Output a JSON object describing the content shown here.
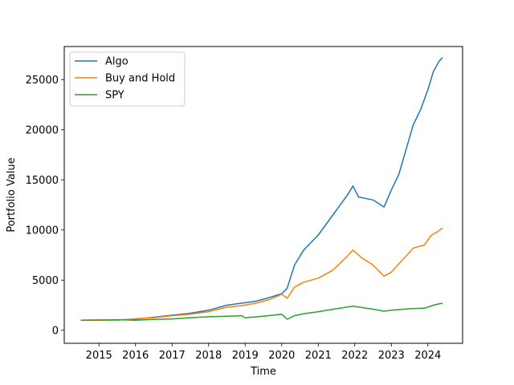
{
  "chart_data": {
    "type": "line",
    "title": "",
    "xlabel": "Time",
    "ylabel": "Portfolio Value",
    "xlim": [
      2014.05,
      2024.95
    ],
    "ylim": [
      -1300,
      28300
    ],
    "x_ticks": [
      2015,
      2016,
      2017,
      2018,
      2019,
      2020,
      2021,
      2022,
      2023,
      2024
    ],
    "x_tick_labels": [
      "2015",
      "2016",
      "2017",
      "2018",
      "2019",
      "2020",
      "2021",
      "2022",
      "2023",
      "2024"
    ],
    "y_ticks": [
      0,
      5000,
      10000,
      15000,
      20000,
      25000
    ],
    "y_tick_labels": [
      "0",
      "5000",
      "10000",
      "15000",
      "20000",
      "25000"
    ],
    "grid": false,
    "legend_position": "upper-left",
    "series": [
      {
        "name": "Algo",
        "color": "#1f77b4",
        "points": [
          [
            2014.5,
            1000
          ],
          [
            2015.0,
            1020
          ],
          [
            2015.5,
            1030
          ],
          [
            2016.0,
            1100
          ],
          [
            2016.5,
            1300
          ],
          [
            2017.0,
            1500
          ],
          [
            2017.5,
            1700
          ],
          [
            2018.0,
            2000
          ],
          [
            2018.5,
            2500
          ],
          [
            2018.9,
            2700
          ],
          [
            2019.3,
            2900
          ],
          [
            2019.7,
            3300
          ],
          [
            2020.0,
            3650
          ],
          [
            2020.15,
            4200
          ],
          [
            2020.35,
            6500
          ],
          [
            2020.6,
            8000
          ],
          [
            2021.0,
            9500
          ],
          [
            2021.4,
            11500
          ],
          [
            2021.8,
            13500
          ],
          [
            2021.95,
            14400
          ],
          [
            2022.1,
            13300
          ],
          [
            2022.5,
            13000
          ],
          [
            2022.8,
            12300
          ],
          [
            2023.0,
            14000
          ],
          [
            2023.2,
            15500
          ],
          [
            2023.4,
            18000
          ],
          [
            2023.6,
            20500
          ],
          [
            2023.8,
            22000
          ],
          [
            2024.0,
            24000
          ],
          [
            2024.15,
            25800
          ],
          [
            2024.3,
            26800
          ],
          [
            2024.4,
            27200
          ]
        ]
      },
      {
        "name": "Buy and Hold",
        "color": "#ff7f0e",
        "points": [
          [
            2014.5,
            1000
          ],
          [
            2015.0,
            1050
          ],
          [
            2015.5,
            1000
          ],
          [
            2016.0,
            1150
          ],
          [
            2016.5,
            1250
          ],
          [
            2017.0,
            1450
          ],
          [
            2017.5,
            1600
          ],
          [
            2018.0,
            1850
          ],
          [
            2018.5,
            2300
          ],
          [
            2018.9,
            2450
          ],
          [
            2019.3,
            2700
          ],
          [
            2019.7,
            3100
          ],
          [
            2020.0,
            3600
          ],
          [
            2020.15,
            3200
          ],
          [
            2020.35,
            4300
          ],
          [
            2020.6,
            4800
          ],
          [
            2021.0,
            5200
          ],
          [
            2021.4,
            6000
          ],
          [
            2021.8,
            7400
          ],
          [
            2021.95,
            8000
          ],
          [
            2022.2,
            7200
          ],
          [
            2022.5,
            6500
          ],
          [
            2022.8,
            5400
          ],
          [
            2023.0,
            5800
          ],
          [
            2023.3,
            7000
          ],
          [
            2023.6,
            8200
          ],
          [
            2023.9,
            8500
          ],
          [
            2024.1,
            9500
          ],
          [
            2024.25,
            9800
          ],
          [
            2024.4,
            10200
          ]
        ]
      },
      {
        "name": "SPY",
        "color": "#2ca02c",
        "points": [
          [
            2014.5,
            1000
          ],
          [
            2015.0,
            1000
          ],
          [
            2015.5,
            1050
          ],
          [
            2016.0,
            1000
          ],
          [
            2016.5,
            1080
          ],
          [
            2017.0,
            1130
          ],
          [
            2017.5,
            1250
          ],
          [
            2018.0,
            1350
          ],
          [
            2018.5,
            1400
          ],
          [
            2018.9,
            1450
          ],
          [
            2019.0,
            1250
          ],
          [
            2019.5,
            1400
          ],
          [
            2020.0,
            1600
          ],
          [
            2020.15,
            1100
          ],
          [
            2020.35,
            1450
          ],
          [
            2020.6,
            1650
          ],
          [
            2021.0,
            1850
          ],
          [
            2021.5,
            2150
          ],
          [
            2021.95,
            2400
          ],
          [
            2022.5,
            2100
          ],
          [
            2022.8,
            1900
          ],
          [
            2023.0,
            2000
          ],
          [
            2023.5,
            2150
          ],
          [
            2023.9,
            2200
          ],
          [
            2024.2,
            2550
          ],
          [
            2024.4,
            2700
          ]
        ]
      }
    ]
  }
}
